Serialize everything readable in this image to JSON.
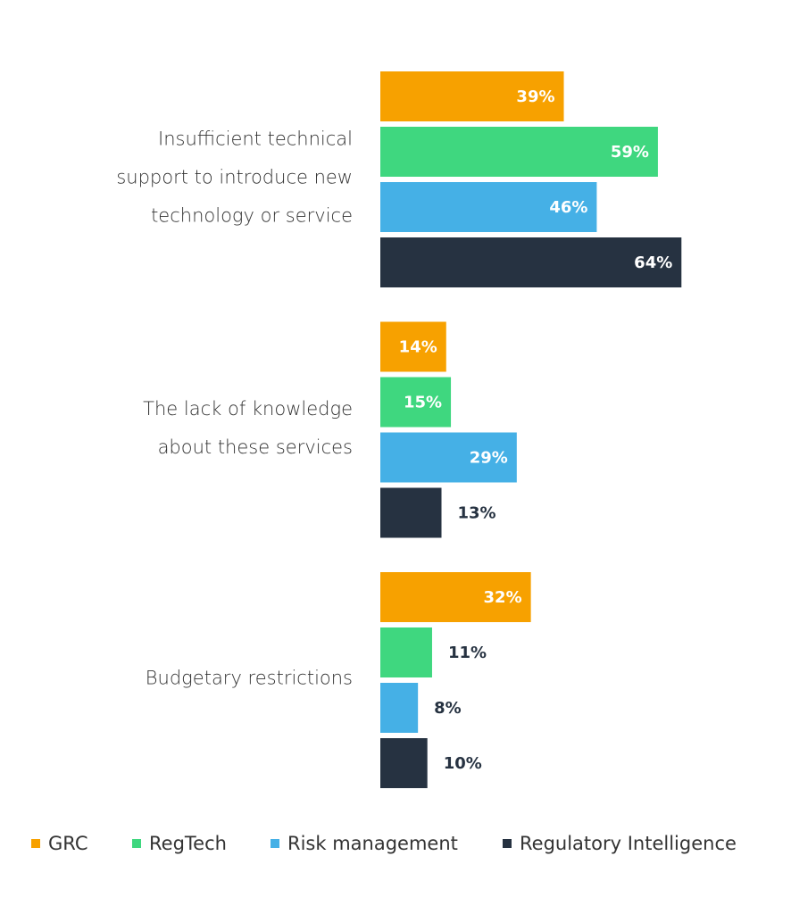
{
  "chart_data": {
    "type": "hbar",
    "categories": [
      "Insufficient technical support to introduce new technology or service",
      "The lack of knowledge about these services",
      "Budgetary restrictions"
    ],
    "series": [
      {
        "name": "GRC",
        "color": "#f7a100",
        "values": [
          39,
          14,
          32
        ],
        "value_labels": [
          "39%",
          "14%",
          "32%"
        ]
      },
      {
        "name": "RegTech",
        "color": "#3fd77f",
        "values": [
          59,
          15,
          11
        ],
        "value_labels": [
          "59%",
          "15%",
          "11%"
        ]
      },
      {
        "name": "Risk management",
        "color": "#45b0e6",
        "values": [
          46,
          29,
          8
        ],
        "value_labels": [
          "46%",
          "29%",
          "8%"
        ]
      },
      {
        "name": "Regulatory Intelligence",
        "color": "#263241",
        "values": [
          64,
          13,
          10
        ],
        "value_labels": [
          "64%",
          "13%",
          "10%"
        ]
      }
    ]
  }
}
